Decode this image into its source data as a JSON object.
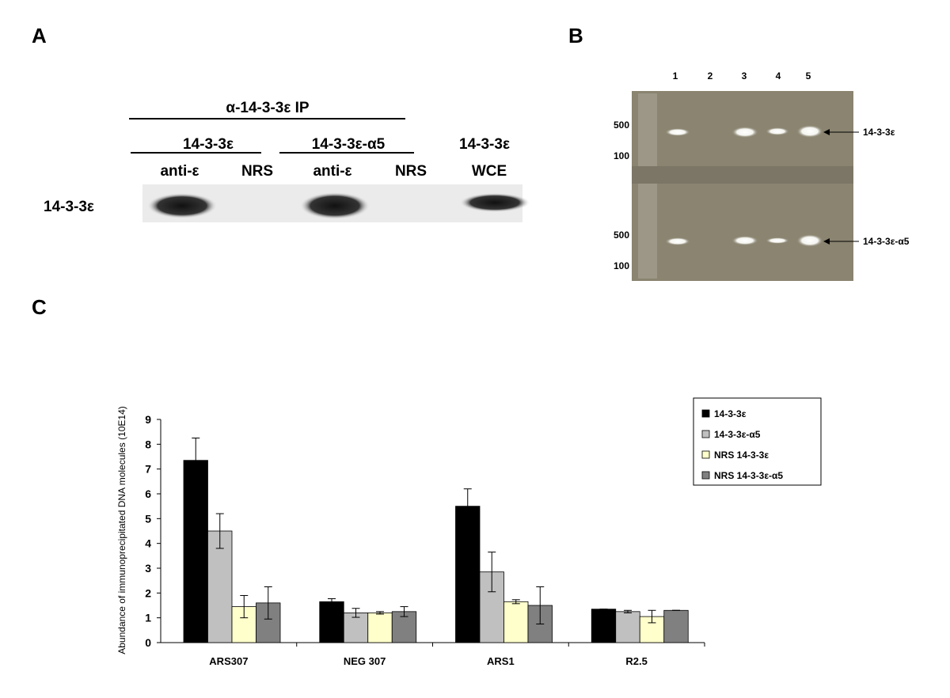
{
  "panel_labels": [
    "A",
    "B",
    "C"
  ],
  "panel_a": {
    "ip_label": "α-14-3-3ε IP",
    "groups": [
      "14-3-3ε",
      "14-3-3ε-α5",
      "14-3-3ε"
    ],
    "lanes": [
      "anti-ε",
      "NRS",
      "anti-ε",
      "NRS",
      "WCE"
    ],
    "row_label": "14-3-3ε"
  },
  "panel_b": {
    "lanes": [
      "1",
      "2",
      "3",
      "4",
      "5"
    ],
    "markers": [
      "500",
      "100",
      "500",
      "100"
    ],
    "bands": [
      "14-3-3ε",
      "14-3-3ε-α5"
    ]
  },
  "chart_data": {
    "type": "bar",
    "y_label": "Abundance of immunoprecipitated DNA molecules (10E14)",
    "categories": [
      "ARS307",
      "NEG 307",
      "ARS1",
      "R2.5"
    ],
    "series": [
      {
        "name": "14-3-3ε",
        "color": "#000000",
        "values": [
          7.35,
          1.65,
          5.5,
          1.35
        ],
        "errors": [
          0.9,
          0.12,
          0.7,
          0
        ]
      },
      {
        "name": "14-3-3ε-α5",
        "color": "#c0c0c0",
        "values": [
          4.5,
          1.2,
          2.85,
          1.25
        ],
        "errors": [
          0.7,
          0.18,
          0.8,
          0.05
        ]
      },
      {
        "name": "NRS 14-3-3ε",
        "color": "#ffffcc",
        "values": [
          1.45,
          1.2,
          1.65,
          1.05
        ],
        "errors": [
          0.45,
          0.05,
          0.08,
          0.25
        ]
      },
      {
        "name": "NRS 14-3-3ε-α5",
        "color": "#808080",
        "values": [
          1.6,
          1.25,
          1.5,
          1.3
        ],
        "errors": [
          0.65,
          0.2,
          0.75,
          0
        ]
      }
    ],
    "ylim": [
      0,
      9
    ],
    "yticks": [
      0,
      1,
      2,
      3,
      4,
      5,
      6,
      7,
      8,
      9
    ],
    "legend": "right"
  }
}
